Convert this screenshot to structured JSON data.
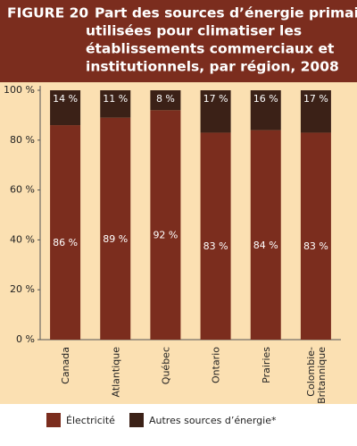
{
  "chart_data": {
    "type": "stacked_bar",
    "figure_label": "FIGURE 20",
    "title": [
      "Part des sources d’énergie primaires",
      "utilisées pour climatiser les",
      "établissements commerciaux et",
      "institutionnels, par région, 2008"
    ],
    "categories": [
      "Canada",
      "Atlantique",
      "Québec",
      "Ontario",
      "Prairies",
      "Colombie-Britannique"
    ],
    "series": [
      {
        "name": "Électricité",
        "color": "#7b2d1e",
        "values": [
          86,
          89,
          92,
          83,
          84,
          83
        ],
        "value_labels": [
          "86 %",
          "89 %",
          "92 %",
          "83 %",
          "84 %",
          "83 %"
        ]
      },
      {
        "name": "Autres sources d’énergie*",
        "color": "#3b2117",
        "values": [
          14,
          11,
          8,
          17,
          16,
          17
        ],
        "value_labels": [
          "14 %",
          "11 %",
          "8 %",
          "17 %",
          "16 %",
          "17 %"
        ]
      }
    ],
    "ylim": [
      0,
      100
    ],
    "yticks": [
      {
        "value": 0,
        "label": "0 %"
      },
      {
        "value": 20,
        "label": "20 %"
      },
      {
        "value": 40,
        "label": "40 %"
      },
      {
        "value": 60,
        "label": "60 %"
      },
      {
        "value": 80,
        "label": "80 %"
      },
      {
        "value": 100,
        "label": "100 %"
      }
    ]
  }
}
